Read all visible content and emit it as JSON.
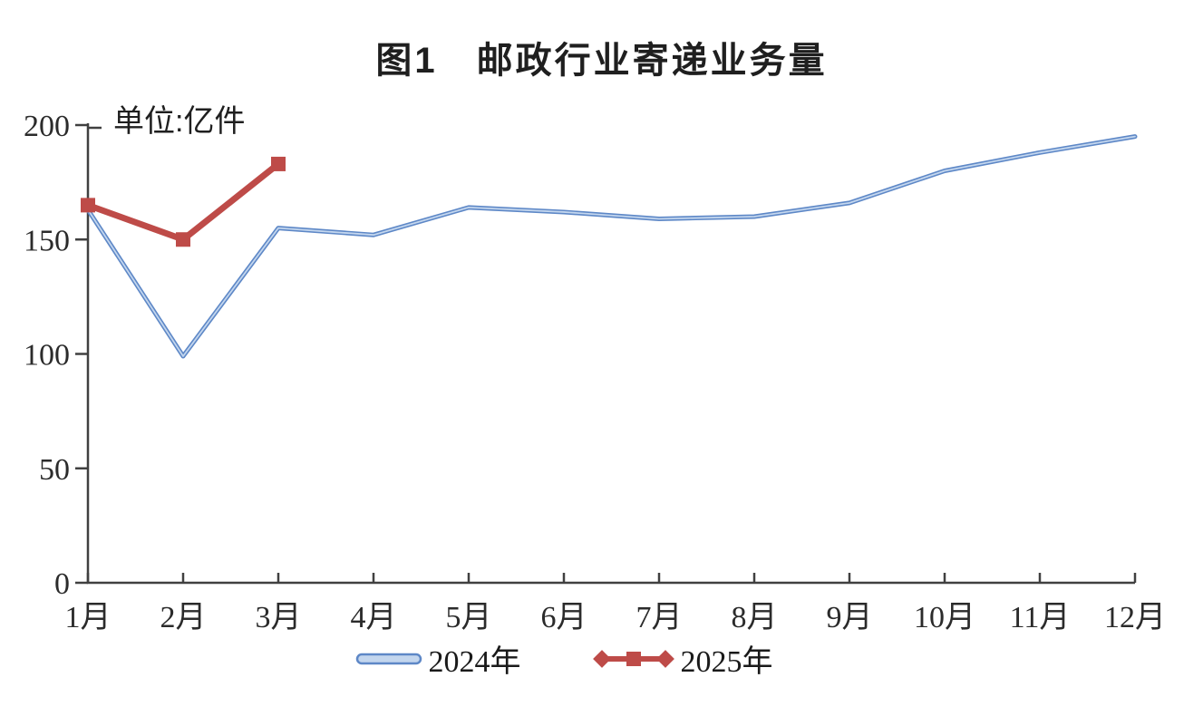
{
  "chart_data": {
    "type": "line",
    "title": "图1　邮政行业寄递业务量",
    "unit_label": "单位:亿件",
    "categories": [
      "1月",
      "2月",
      "3月",
      "4月",
      "5月",
      "6月",
      "7月",
      "8月",
      "9月",
      "10月",
      "11月",
      "12月"
    ],
    "series": [
      {
        "name": "2024年",
        "color": "#5E88C7",
        "highlight": "#C3D6EE",
        "marker": "none",
        "values": [
          163,
          99,
          155,
          152,
          164,
          162,
          159,
          160,
          166,
          180,
          188,
          195
        ]
      },
      {
        "name": "2025年",
        "color": "#BE4B48",
        "highlight": "#BE4B48",
        "marker": "square",
        "values": [
          165,
          150,
          183
        ]
      }
    ],
    "ylim": [
      0,
      200
    ],
    "yticks": [
      0,
      50,
      100,
      150,
      200
    ],
    "grid": false,
    "legend_position": "bottom",
    "axis_color": "#404040",
    "text_color": "#2b2b2b",
    "xlabel": "",
    "ylabel": ""
  }
}
